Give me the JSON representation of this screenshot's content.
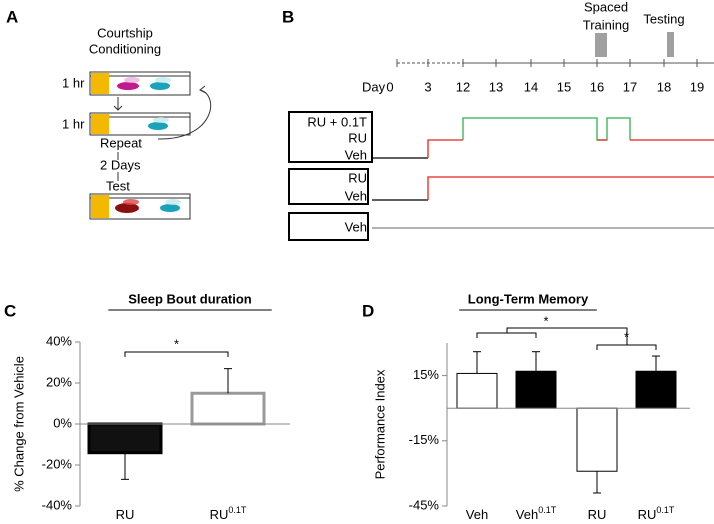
{
  "panel_labels": [
    "A",
    "B",
    "C",
    "D"
  ],
  "diagram_a": {
    "title_lines": [
      "Courtship",
      "Conditioning"
    ],
    "durations": [
      "1 hr",
      "1 hr"
    ],
    "steps": [
      "Repeat",
      "2 Days",
      "Test"
    ]
  },
  "diagram_b": {
    "spaced_training": [
      "Spaced",
      "Training"
    ],
    "testing": "Testing",
    "day_label": "Day",
    "days": [
      0,
      3,
      12,
      13,
      14,
      15,
      16,
      17,
      18,
      19
    ],
    "groups": [
      {
        "labels": [
          {
            "text": "RU + 0.1T",
            "color": "#2db34a"
          },
          {
            "text": "RU",
            "color": "#e8231e"
          },
          {
            "text": "Veh",
            "color": "#000000"
          }
        ]
      },
      {
        "labels": [
          {
            "text": "RU",
            "color": "#e8231e"
          },
          {
            "text": "Veh",
            "color": "#000000"
          }
        ]
      },
      {
        "labels": [
          {
            "text": "Veh",
            "color": "#000000"
          }
        ]
      }
    ]
  },
  "chart_data": [
    {
      "type": "bar",
      "title": "Sleep Bout duration",
      "ylabel": "% Change from Vehicle",
      "categories": [
        "RU",
        "RU"
      ],
      "category_superscripts": [
        null,
        "0.1T"
      ],
      "values": [
        -14,
        15
      ],
      "errors": [
        13,
        12
      ],
      "colors": [
        "#111111",
        "#ffffff"
      ],
      "annotations": [
        "*"
      ],
      "ylim": [
        -40,
        40
      ],
      "yticks": [
        {
          "value": 40,
          "label": "40%"
        },
        {
          "value": 20,
          "label": "20%"
        },
        {
          "value": 0,
          "label": "0%"
        },
        {
          "value": -20,
          "label": "-20%"
        },
        {
          "value": -40,
          "label": "-40%"
        }
      ]
    },
    {
      "type": "bar",
      "title": "Long-Term Memory",
      "ylabel": "Performance Index",
      "categories": [
        "Veh",
        "Veh",
        "RU",
        "RU"
      ],
      "category_superscripts": [
        null,
        "0.1T",
        null,
        "0.1T"
      ],
      "values": [
        16,
        17,
        -29,
        17
      ],
      "errors": [
        10,
        9,
        10,
        7
      ],
      "colors": [
        "#ffffff",
        "#000000",
        "#ffffff",
        "#000000"
      ],
      "annotations": [
        "*",
        "*"
      ],
      "ylim": [
        -45,
        30
      ],
      "yticks": [
        {
          "value": 15,
          "label": "15%"
        },
        {
          "value": -15,
          "label": "-15%"
        },
        {
          "value": -45,
          "label": "-45%"
        }
      ]
    }
  ]
}
